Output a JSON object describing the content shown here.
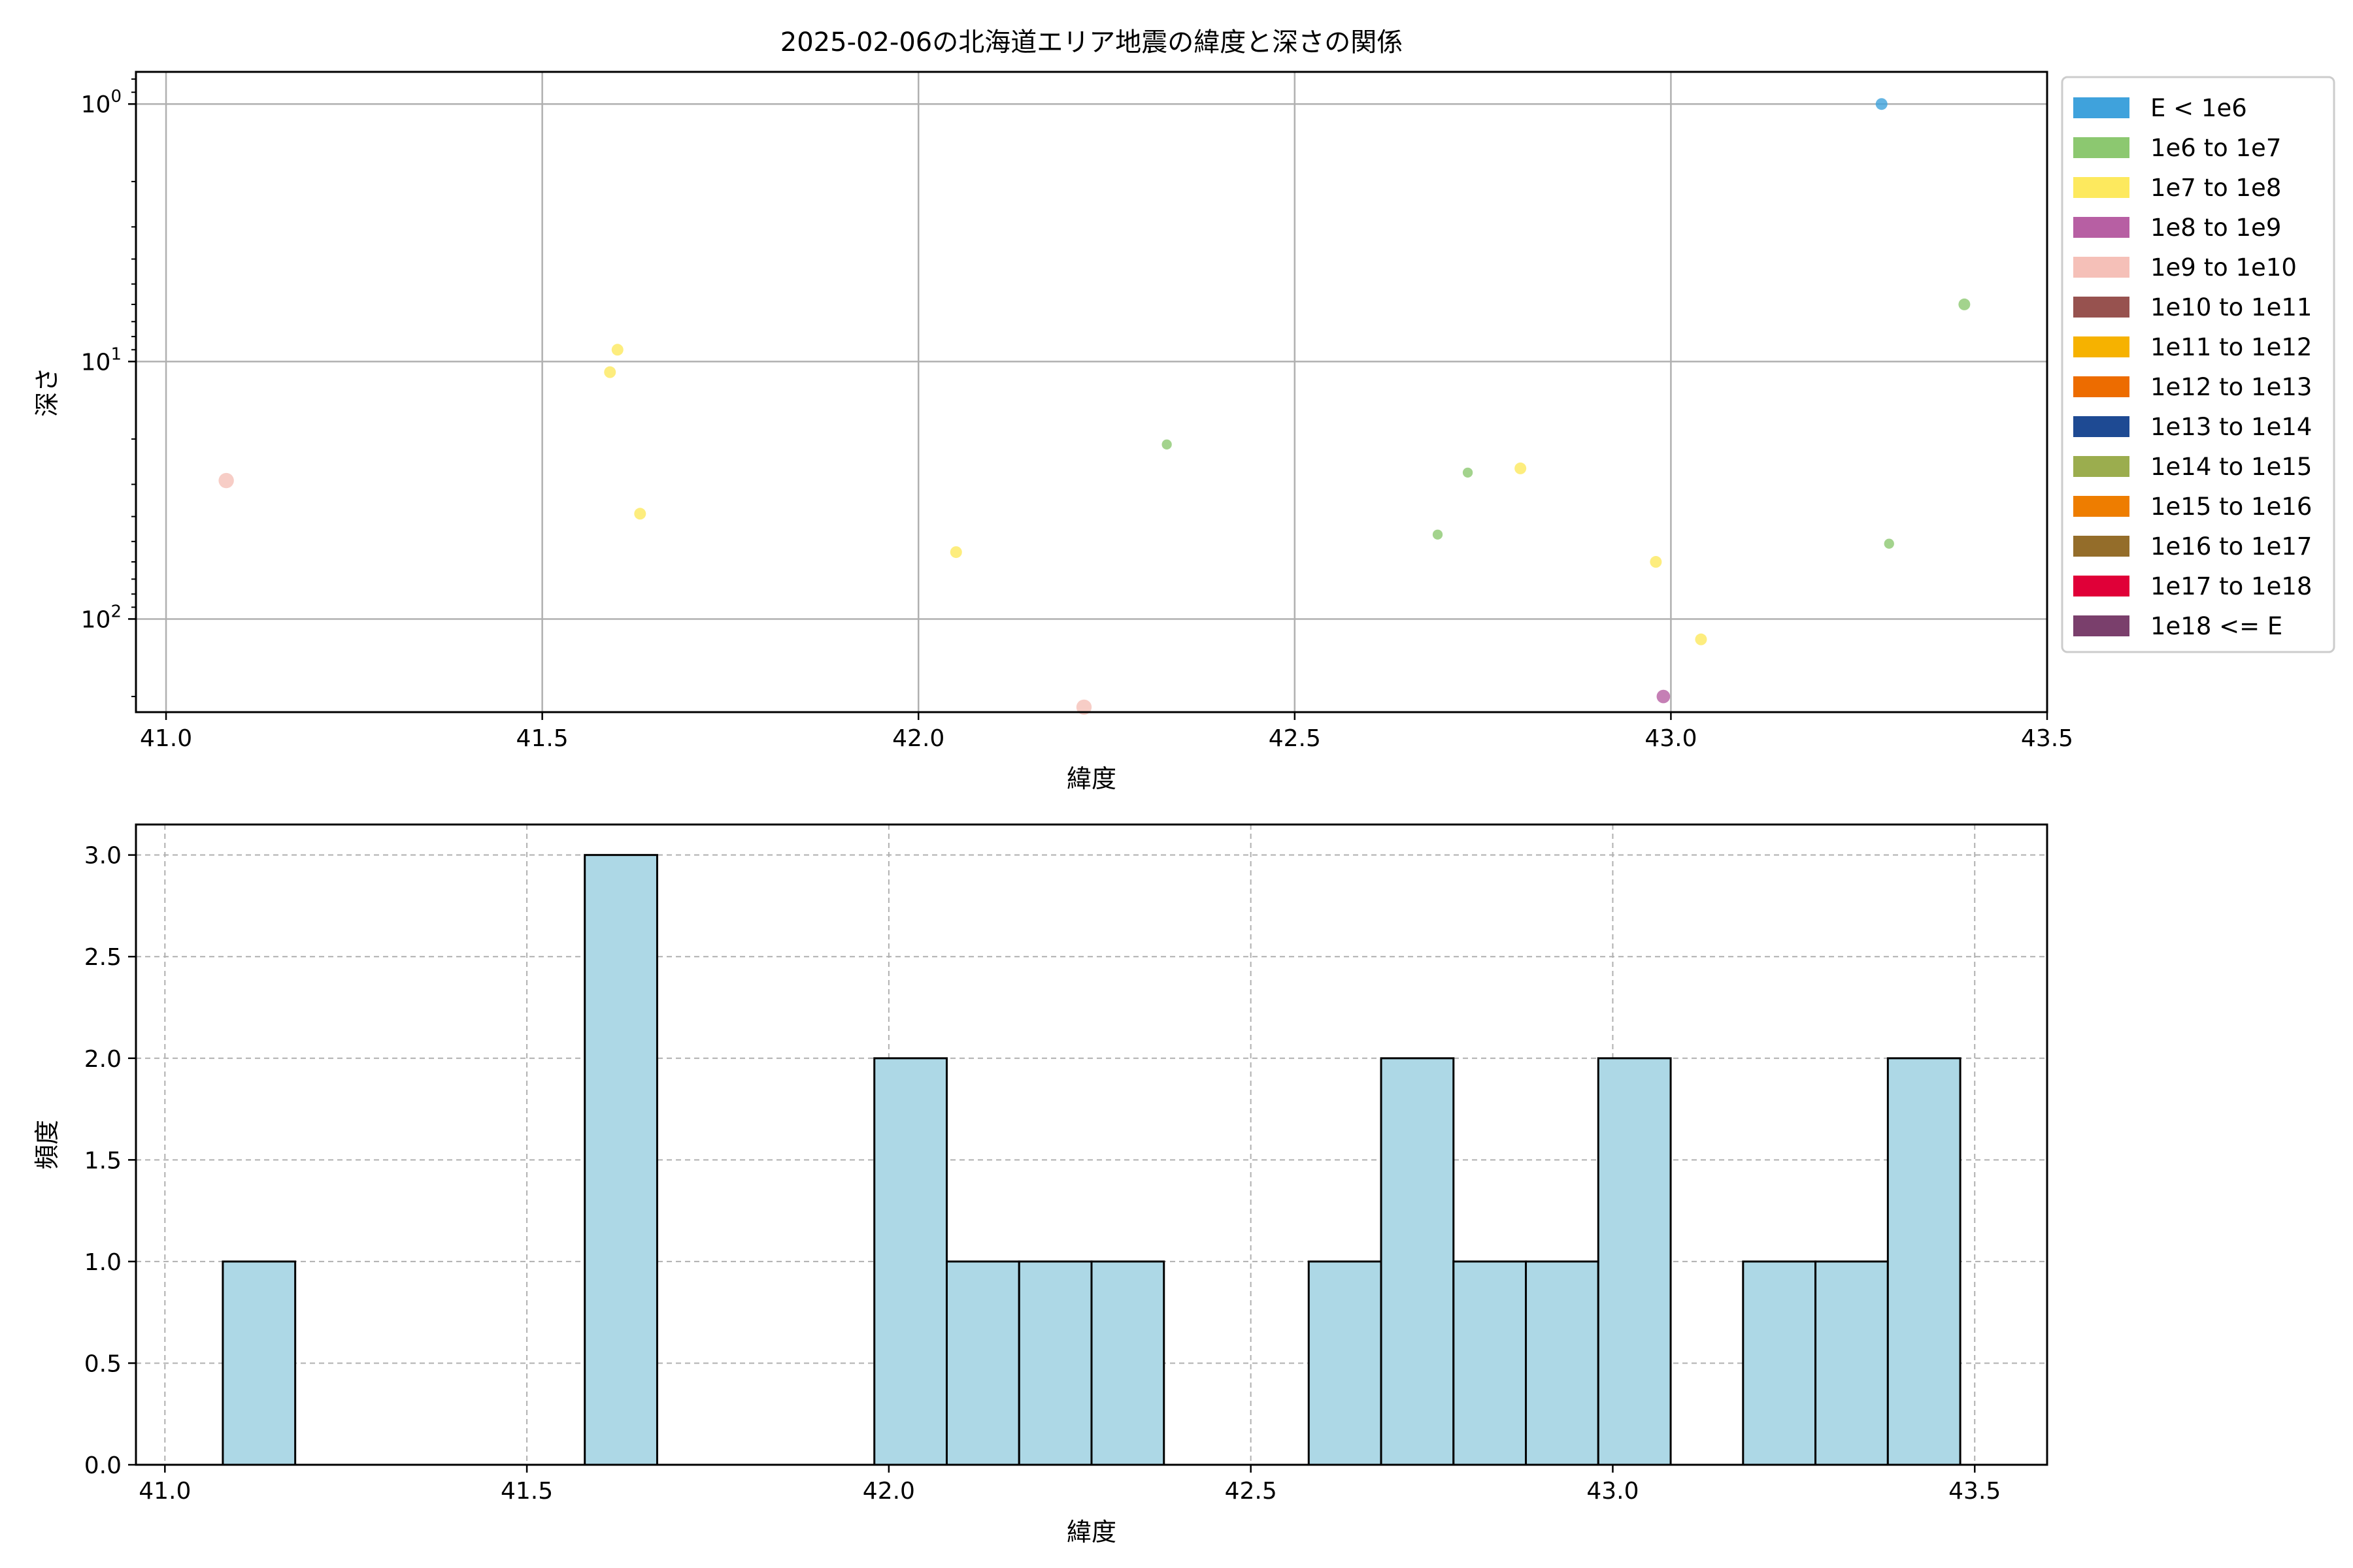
{
  "chart_data": [
    {
      "type": "scatter",
      "title": "2025-02-06の北海道エリア地震の緯度と深さの関係",
      "xlabel": "緯度",
      "ylabel": "深さ",
      "xlim": [
        40.96,
        43.5
      ],
      "ylim": [
        230,
        0.75
      ],
      "y_scale": "log",
      "y_inverted": true,
      "grid": true,
      "xticks": [
        41.0,
        41.5,
        42.0,
        42.5,
        43.0,
        43.5
      ],
      "xtick_labels": [
        "41.0",
        "41.5",
        "42.0",
        "42.5",
        "43.0",
        "43.5"
      ],
      "yticks": [
        1,
        10,
        100
      ],
      "ytick_labels": [
        "10^0",
        "10^1",
        "10^2"
      ],
      "legend": {
        "placement": "outside-right",
        "entries": [
          {
            "label": "E < 1e6",
            "color": "#3fa2dc"
          },
          {
            "label": "1e6 to 1e7",
            "color": "#8cc870"
          },
          {
            "label": "1e7 to 1e8",
            "color": "#fde95e"
          },
          {
            "label": "1e8 to 1e9",
            "color": "#b75fa3"
          },
          {
            "label": "1e9 to 1e10",
            "color": "#f5c0b8"
          },
          {
            "label": "1e10 to 1e11",
            "color": "#97524f"
          },
          {
            "label": "1e11 to 1e12",
            "color": "#f6b200"
          },
          {
            "label": "1e12 to 1e13",
            "color": "#ed6c00"
          },
          {
            "label": "1e13 to 1e14",
            "color": "#1e4a93"
          },
          {
            "label": "1e14 to 1e15",
            "color": "#9bad4e"
          },
          {
            "label": "1e15 to 1e16",
            "color": "#ee7d00"
          },
          {
            "label": "1e16 to 1e17",
            "color": "#946d2a"
          },
          {
            "label": "1e17 to 1e18",
            "color": "#e00038"
          },
          {
            "label": "1e18 <= E",
            "color": "#7a3f6c"
          }
        ]
      },
      "points": [
        {
          "x": 43.28,
          "y": 1.0,
          "color": "#3fa2dc",
          "size": 1
        },
        {
          "x": 43.39,
          "y": 6.0,
          "color": "#8cc870",
          "size": 1
        },
        {
          "x": 41.08,
          "y": 29.0,
          "color": "#f5c0b8",
          "size": 1.3
        },
        {
          "x": 41.59,
          "y": 11.0,
          "color": "#fde95e",
          "size": 1
        },
        {
          "x": 41.6,
          "y": 9.0,
          "color": "#fde95e",
          "size": 1
        },
        {
          "x": 41.63,
          "y": 39.0,
          "color": "#fde95e",
          "size": 1
        },
        {
          "x": 42.05,
          "y": 55.0,
          "color": "#fde95e",
          "size": 1
        },
        {
          "x": 42.22,
          "y": 220.0,
          "color": "#f5c0b8",
          "size": 1.3
        },
        {
          "x": 42.33,
          "y": 21.0,
          "color": "#8cc870",
          "size": 0.85
        },
        {
          "x": 42.69,
          "y": 47.0,
          "color": "#8cc870",
          "size": 0.85
        },
        {
          "x": 42.73,
          "y": 27.0,
          "color": "#8cc870",
          "size": 0.85
        },
        {
          "x": 42.8,
          "y": 26.0,
          "color": "#fde95e",
          "size": 1
        },
        {
          "x": 42.98,
          "y": 60.0,
          "color": "#fde95e",
          "size": 1
        },
        {
          "x": 42.99,
          "y": 200.0,
          "color": "#b75fa3",
          "size": 1.15
        },
        {
          "x": 43.04,
          "y": 120.0,
          "color": "#fde95e",
          "size": 1
        },
        {
          "x": 43.29,
          "y": 51.0,
          "color": "#8cc870",
          "size": 0.85
        }
      ]
    },
    {
      "type": "bar",
      "subtype": "histogram",
      "xlabel": "緯度",
      "ylabel": "頻度",
      "xlim": [
        40.96,
        43.6
      ],
      "ylim": [
        0,
        3.15
      ],
      "grid": true,
      "grid_style": "dashed",
      "bar_color": "#add8e6",
      "edge_color": "#000000",
      "bin_width": 0.1,
      "bins": [
        {
          "start": 41.08,
          "count": 1
        },
        {
          "start": 41.58,
          "count": 3
        },
        {
          "start": 41.98,
          "count": 2
        },
        {
          "start": 42.08,
          "count": 1
        },
        {
          "start": 42.18,
          "count": 1
        },
        {
          "start": 42.28,
          "count": 1
        },
        {
          "start": 42.58,
          "count": 1
        },
        {
          "start": 42.68,
          "count": 2
        },
        {
          "start": 42.78,
          "count": 1
        },
        {
          "start": 42.88,
          "count": 1
        },
        {
          "start": 42.98,
          "count": 2
        },
        {
          "start": 43.18,
          "count": 1
        },
        {
          "start": 43.28,
          "count": 1
        },
        {
          "start": 43.38,
          "count": 2
        }
      ],
      "xticks": [
        41.0,
        41.5,
        42.0,
        42.5,
        43.0,
        43.5
      ],
      "xtick_labels": [
        "41.0",
        "41.5",
        "42.0",
        "42.5",
        "43.0",
        "43.5"
      ],
      "yticks": [
        0,
        0.5,
        1,
        1.5,
        2,
        2.5,
        3
      ],
      "ytick_labels": [
        "0.0",
        "0.5",
        "1.0",
        "1.5",
        "2.0",
        "2.5",
        "3.0"
      ]
    }
  ]
}
